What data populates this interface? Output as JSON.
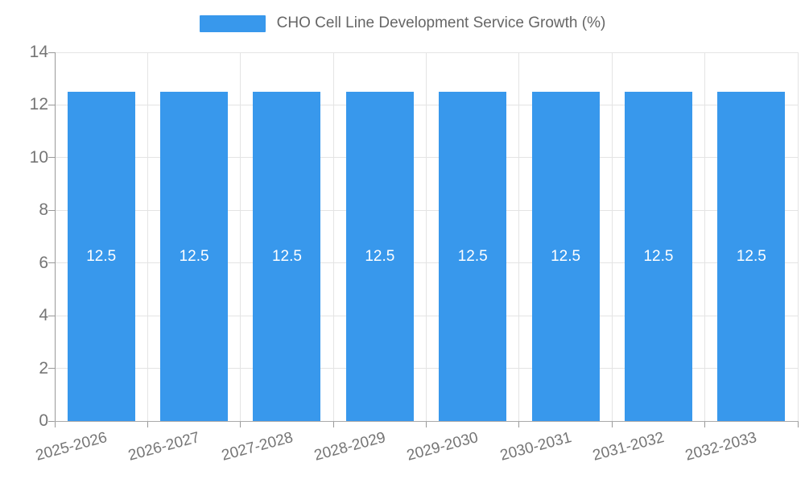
{
  "chart_data": {
    "type": "bar",
    "title": "CHO Cell Line Development Service Growth (%)",
    "categories": [
      "2025-2026",
      "2026-2027",
      "2027-2028",
      "2028-2029",
      "2029-2030",
      "2030-2031",
      "2031-2032",
      "2032-2033"
    ],
    "series": [
      {
        "name": "CHO Cell Line Development Service Growth (%)",
        "values": [
          12.5,
          12.5,
          12.5,
          12.5,
          12.5,
          12.5,
          12.5,
          12.5
        ],
        "data_labels": [
          "12.5",
          "12.5",
          "12.5",
          "12.5",
          "12.5",
          "12.5",
          "12.5",
          "12.5"
        ]
      }
    ],
    "xlabel": "",
    "ylabel": "",
    "ylim": [
      0,
      14
    ],
    "yticks": [
      0,
      2,
      4,
      6,
      8,
      10,
      12,
      14
    ],
    "grid": true,
    "legend_position": "top",
    "x_label_rotation_deg": -15,
    "colors": {
      "bar": "#3898ec",
      "bar_value_text": "#ffffff",
      "axis_line": "#999999",
      "gridline": "#e4e4e4",
      "tick_text": "#757575",
      "legend_text": "#666666"
    }
  }
}
